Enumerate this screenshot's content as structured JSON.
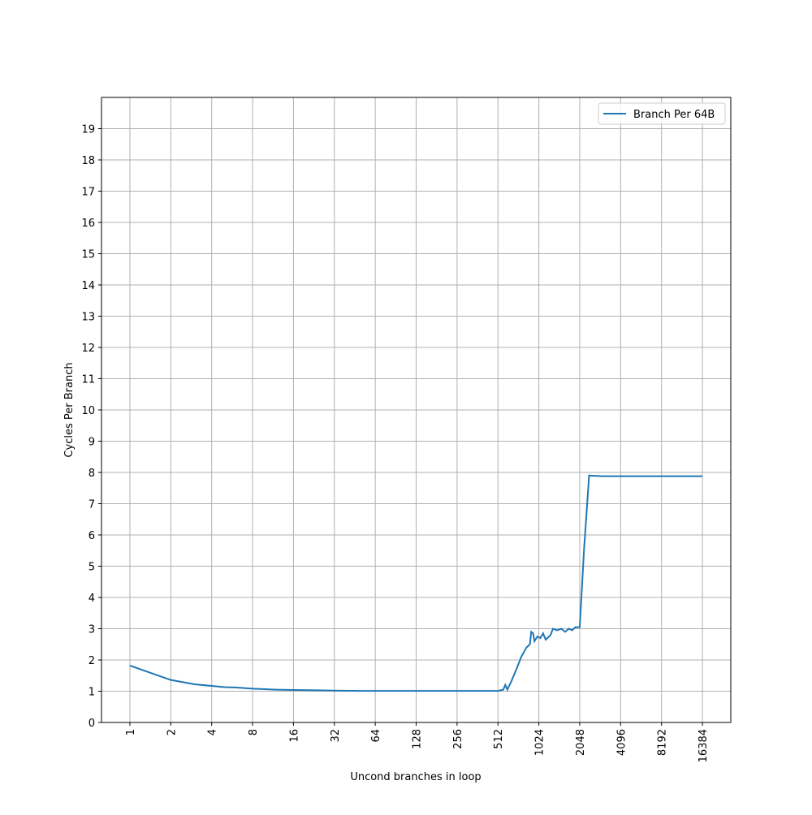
{
  "chart_data": {
    "type": "line",
    "x_label": "Uncond branches in loop",
    "y_label": "Cycles Per Branch",
    "x": [
      1,
      2,
      3,
      4,
      5,
      6,
      8,
      12,
      16,
      24,
      32,
      48,
      64,
      128,
      256,
      512,
      560,
      580,
      600,
      640,
      700,
      760,
      830,
      880,
      900,
      930,
      950,
      1000,
      1050,
      1100,
      1150,
      1250,
      1300,
      1400,
      1500,
      1600,
      1700,
      1800,
      1900,
      2048,
      2200,
      2400,
      3000,
      4096,
      8192,
      16384
    ],
    "series": [
      {
        "name": "Branch Per 64B",
        "color": "#1f77b4",
        "values": [
          1.82,
          1.36,
          1.22,
          1.17,
          1.13,
          1.12,
          1.08,
          1.05,
          1.04,
          1.03,
          1.02,
          1.01,
          1.01,
          1.01,
          1.01,
          1.01,
          1.05,
          1.2,
          1.05,
          1.3,
          1.7,
          2.1,
          2.4,
          2.5,
          2.9,
          2.85,
          2.6,
          2.75,
          2.7,
          2.85,
          2.65,
          2.8,
          3.0,
          2.95,
          3.0,
          2.9,
          3.0,
          2.95,
          3.05,
          3.05,
          5.5,
          7.9,
          7.88,
          7.88,
          7.88,
          7.88
        ]
      }
    ],
    "xlog": true,
    "xlim": [
      0.618,
      26500
    ],
    "xticks": [
      1,
      2,
      4,
      8,
      16,
      32,
      64,
      128,
      256,
      512,
      1024,
      2048,
      4096,
      8192,
      16384
    ],
    "ylim": [
      0,
      20
    ],
    "yticks": [
      0,
      1,
      2,
      3,
      4,
      5,
      6,
      7,
      8,
      9,
      10,
      11,
      12,
      13,
      14,
      15,
      16,
      17,
      18,
      19
    ],
    "grid": true,
    "legend": "upper right"
  }
}
